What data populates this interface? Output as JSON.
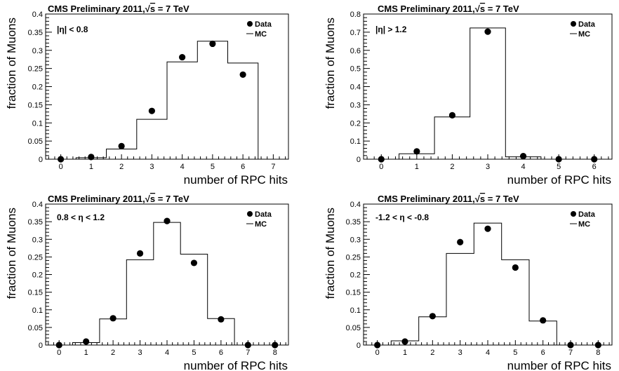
{
  "figure": {
    "title_text": "CMS Preliminary 2011,",
    "energy_prefix": "s",
    "energy_suffix": " = 7 TeV",
    "ylabel": "fraction of Muons",
    "xlabel": "number of RPC hits",
    "legend": {
      "data_label": "Data",
      "mc_label": "MC"
    }
  },
  "chart_data": [
    {
      "type": "bar",
      "title": "CMS Preliminary 2011,√s = 7 TeV",
      "region_label": "|η| < 0.8",
      "xlabel": "number of RPC hits",
      "ylabel": "fraction of Muons",
      "xlim": [
        -0.5,
        7.5
      ],
      "ylim": [
        0,
        0.4
      ],
      "xticks": [
        "0",
        "1",
        "2",
        "3",
        "4",
        "5",
        "6",
        "7"
      ],
      "yticks": [
        "0",
        "0.05",
        "0.1",
        "0.15",
        "0.2",
        "0.25",
        "0.3",
        "0.35",
        "0.4"
      ],
      "legend": "top-right",
      "series": [
        {
          "name": "Data",
          "style": "markers",
          "x": [
            0,
            1,
            2,
            3,
            4,
            5,
            6
          ],
          "values": [
            0.0,
            0.006,
            0.036,
            0.133,
            0.281,
            0.318,
            0.233
          ]
        },
        {
          "name": "MC",
          "style": "step",
          "x": [
            0,
            1,
            2,
            3,
            4,
            5,
            6,
            7
          ],
          "values": [
            0.0,
            0.004,
            0.028,
            0.11,
            0.268,
            0.325,
            0.265,
            0.0
          ]
        }
      ]
    },
    {
      "type": "bar",
      "title": "CMS Preliminary 2011,√s = 7 TeV",
      "region_label": "|η| > 1.2",
      "xlabel": "number of RPC hits",
      "ylabel": "fraction of Muons",
      "xlim": [
        -0.5,
        6.5
      ],
      "ylim": [
        0,
        0.8
      ],
      "xticks": [
        "0",
        "1",
        "2",
        "3",
        "4",
        "5",
        "6"
      ],
      "yticks": [
        "0",
        "0.1",
        "0.2",
        "0.3",
        "0.4",
        "0.5",
        "0.6",
        "0.7",
        "0.8"
      ],
      "legend": "top-right",
      "series": [
        {
          "name": "Data",
          "style": "markers",
          "x": [
            0,
            1,
            2,
            3,
            4,
            5,
            6
          ],
          "values": [
            0.0,
            0.043,
            0.242,
            0.703,
            0.017,
            0.0,
            0.0
          ]
        },
        {
          "name": "MC",
          "style": "step",
          "x": [
            0,
            1,
            2,
            3,
            4,
            5,
            6
          ],
          "values": [
            0.0,
            0.03,
            0.233,
            0.723,
            0.013,
            0.0,
            0.0
          ]
        }
      ]
    },
    {
      "type": "bar",
      "title": "CMS Preliminary 2011,√s = 7 TeV",
      "region_label": "0.8 < η < 1.2",
      "xlabel": "number of RPC hits",
      "ylabel": "fraction of Muons",
      "xlim": [
        -0.5,
        8.5
      ],
      "ylim": [
        0,
        0.4
      ],
      "xticks": [
        "0",
        "1",
        "2",
        "3",
        "4",
        "5",
        "6",
        "7",
        "8"
      ],
      "yticks": [
        "0",
        "0.05",
        "0.1",
        "0.15",
        "0.2",
        "0.25",
        "0.3",
        "0.35",
        "0.4"
      ],
      "legend": "top-right",
      "series": [
        {
          "name": "Data",
          "style": "markers",
          "x": [
            0,
            1,
            2,
            3,
            4,
            5,
            6,
            7,
            8
          ],
          "values": [
            0.0,
            0.01,
            0.076,
            0.26,
            0.352,
            0.233,
            0.073,
            0.0,
            0.0
          ]
        },
        {
          "name": "MC",
          "style": "step",
          "x": [
            0,
            1,
            2,
            3,
            4,
            5,
            6,
            7,
            8
          ],
          "values": [
            0.0,
            0.007,
            0.074,
            0.242,
            0.348,
            0.258,
            0.075,
            0.0,
            0.0
          ]
        }
      ]
    },
    {
      "type": "bar",
      "title": "CMS Preliminary 2011,√s = 7 TeV",
      "region_label": "-1.2 < η < -0.8",
      "xlabel": "number of RPC hits",
      "ylabel": "fraction of Muons",
      "xlim": [
        -0.5,
        8.5
      ],
      "ylim": [
        0,
        0.4
      ],
      "xticks": [
        "0",
        "1",
        "2",
        "3",
        "4",
        "5",
        "6",
        "7",
        "8"
      ],
      "yticks": [
        "0",
        "0.05",
        "0.1",
        "0.15",
        "0.2",
        "0.25",
        "0.3",
        "0.35",
        "0.4"
      ],
      "legend": "top-right",
      "series": [
        {
          "name": "Data",
          "style": "markers",
          "x": [
            0,
            1,
            2,
            3,
            4,
            5,
            6,
            7,
            8
          ],
          "values": [
            0.0,
            0.01,
            0.082,
            0.292,
            0.33,
            0.22,
            0.07,
            0.0,
            0.0
          ]
        },
        {
          "name": "MC",
          "style": "step",
          "x": [
            0,
            1,
            2,
            3,
            4,
            5,
            6,
            7,
            8
          ],
          "values": [
            0.0,
            0.012,
            0.08,
            0.26,
            0.346,
            0.242,
            0.068,
            0.0,
            0.0
          ]
        }
      ]
    }
  ]
}
